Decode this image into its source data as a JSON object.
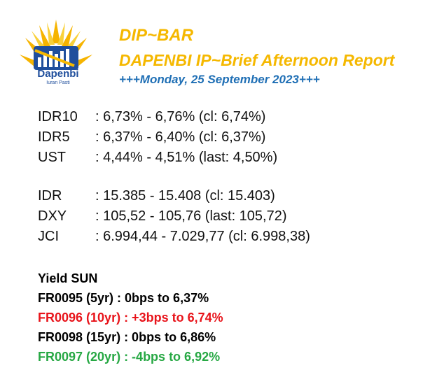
{
  "header": {
    "logo_name": "Dapenbi",
    "logo_tagline": "Iuran Pasti",
    "title": "DIP~BAR",
    "subtitle": "DAPENBI IP~Brief Afternoon Report",
    "date": "+++Monday, 25 September 2023+++"
  },
  "rates": [
    {
      "label": "IDR10",
      "value": ": 6,73% - 6,76% (cl: 6,74%)"
    },
    {
      "label": "IDR5",
      "value": ": 6,37% - 6,40% (cl: 6,37%)"
    },
    {
      "label": "UST",
      "value": ": 4,44% - 4,51% (last: 4,50%)"
    }
  ],
  "markets": [
    {
      "label": "IDR",
      "value": ": 15.385 - 15.408 (cl: 15.403)"
    },
    {
      "label": "DXY",
      "value": ": 105,52 - 105,76 (last: 105,72)"
    },
    {
      "label": "JCI",
      "value": ": 6.994,44 - 7.029,77 (cl: 6.998,38)"
    }
  ],
  "yield": {
    "heading": "Yield SUN",
    "items": [
      {
        "text": "FR0095 (5yr) : 0bps to 6,37%",
        "color": "#000000"
      },
      {
        "text": "FR0096 (10yr) : +3bps to 6,74%",
        "color": "#e8141b"
      },
      {
        "text": "FR0098 (15yr) : 0bps to 6,86%",
        "color": "#000000"
      },
      {
        "text": "FR0097 (20yr) : -4bps to 6,92%",
        "color": "#27a844"
      }
    ]
  },
  "colors": {
    "brand_yellow": "#f5b800",
    "brand_blue": "#1f6fb5"
  }
}
